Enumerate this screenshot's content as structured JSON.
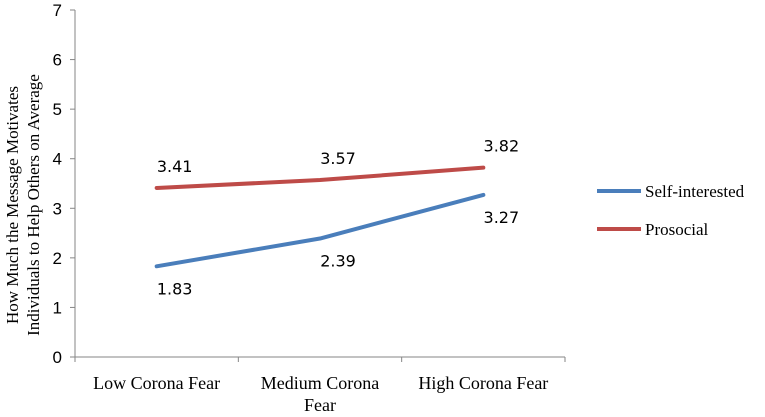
{
  "chart_data": {
    "type": "line",
    "categories": [
      "Low Corona Fear",
      "Medium Corona Fear",
      "High Corona Fear"
    ],
    "category_lines": [
      [
        "Low Corona Fear"
      ],
      [
        "Medium Corona",
        "Fear"
      ],
      [
        "High Corona Fear"
      ]
    ],
    "series": [
      {
        "name": "Self-interested",
        "values": [
          1.83,
          2.39,
          3.27
        ],
        "labels": [
          "1.83",
          "2.39",
          "3.27"
        ],
        "color": "#4a7ebb",
        "label_position": "below"
      },
      {
        "name": "Prosocial",
        "values": [
          3.41,
          3.57,
          3.82
        ],
        "labels": [
          "3.41",
          "3.57",
          "3.82"
        ],
        "color": "#be4b48",
        "label_position": "above"
      }
    ],
    "ylabel_lines": [
      "How Much the Message Motivates",
      "Individuals to Help Others on Average"
    ],
    "xlabel": "",
    "ylim": [
      0,
      7
    ],
    "yticks": [
      0,
      1,
      2,
      3,
      4,
      5,
      6,
      7
    ],
    "grid": false,
    "legend_position": "right"
  }
}
